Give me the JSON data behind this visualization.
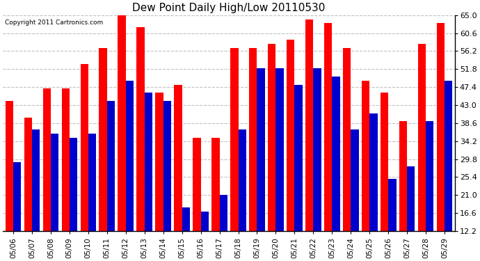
{
  "title": "Dew Point Daily High/Low 20110530",
  "copyright": "Copyright 2011 Cartronics.com",
  "dates": [
    "05/06",
    "05/07",
    "05/08",
    "05/09",
    "05/10",
    "05/11",
    "05/12",
    "05/13",
    "05/14",
    "05/15",
    "05/16",
    "05/17",
    "05/18",
    "05/19",
    "05/20",
    "05/21",
    "05/22",
    "05/23",
    "05/24",
    "05/25",
    "05/26",
    "05/27",
    "05/28",
    "05/29"
  ],
  "highs": [
    44.0,
    40.0,
    47.0,
    47.0,
    53.0,
    57.0,
    65.0,
    62.0,
    46.0,
    48.0,
    35.0,
    35.0,
    57.0,
    57.0,
    58.0,
    59.0,
    64.0,
    63.0,
    57.0,
    49.0,
    46.0,
    39.0,
    58.0,
    63.0
  ],
  "lows": [
    29.0,
    37.0,
    36.0,
    35.0,
    36.0,
    44.0,
    49.0,
    46.0,
    44.0,
    18.0,
    17.0,
    21.0,
    37.0,
    52.0,
    52.0,
    48.0,
    52.0,
    50.0,
    37.0,
    41.0,
    25.0,
    28.0,
    39.0,
    49.0
  ],
  "high_color": "#ff0000",
  "low_color": "#0000cc",
  "bg_color": "#ffffff",
  "grid_color": "#c0c0c0",
  "ylim_min": 12.2,
  "ylim_max": 65.0,
  "yticks": [
    12.2,
    16.6,
    21.0,
    25.4,
    29.8,
    34.2,
    38.6,
    43.0,
    47.4,
    51.8,
    56.2,
    60.6,
    65.0
  ],
  "bar_width": 0.42,
  "figsize": [
    6.9,
    3.75
  ],
  "dpi": 100
}
